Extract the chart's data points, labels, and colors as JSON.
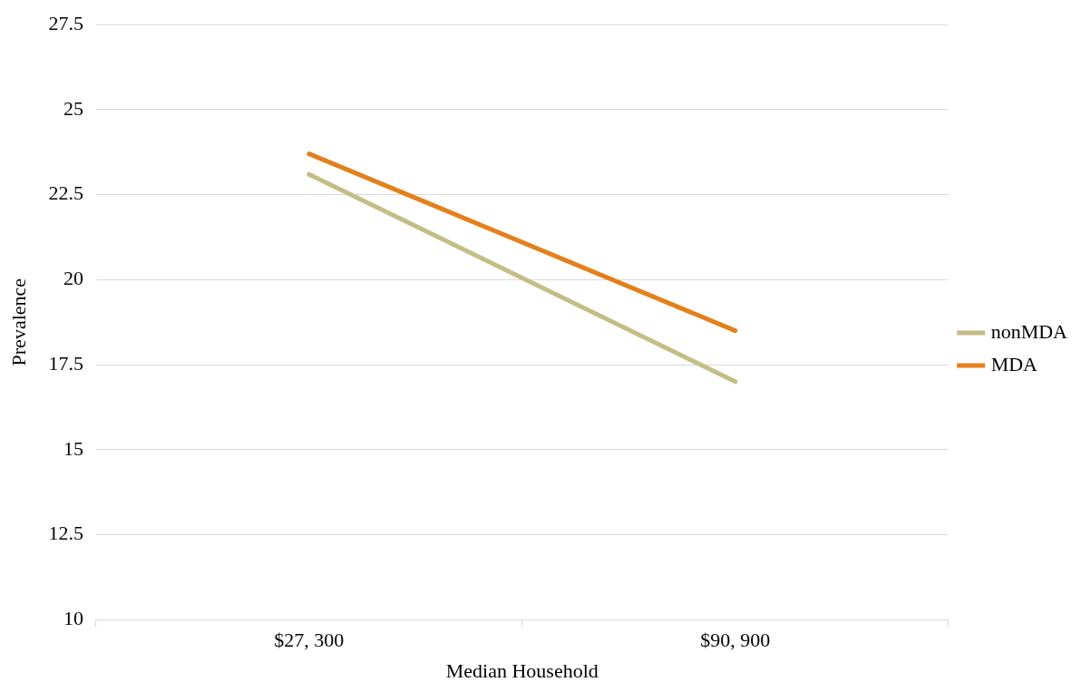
{
  "chart_data": {
    "type": "line",
    "xlabel": "Median Household",
    "ylabel": "Prevalence",
    "categories": [
      "$27, 300",
      "$90, 900"
    ],
    "series": [
      {
        "name": "nonMDA",
        "color": "#c4bd86",
        "values": [
          23.1,
          17.0
        ]
      },
      {
        "name": "MDA",
        "color": "#e4801c",
        "values": [
          23.7,
          18.5
        ]
      }
    ],
    "ylim": [
      10,
      27.5
    ],
    "yticks": [
      10,
      12.5,
      15,
      17.5,
      20,
      22.5,
      25,
      27.5
    ],
    "grid": "y",
    "legend": "right",
    "marker": "none",
    "line_style": "solid"
  }
}
